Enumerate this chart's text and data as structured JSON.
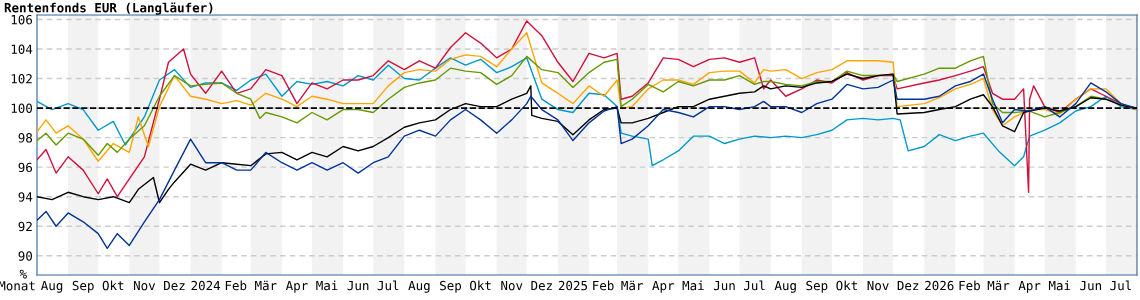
{
  "chart_data": {
    "type": "line",
    "title": "Rentenfonds EUR (Langläufer)",
    "xlabel": "Monat",
    "ylabel": "%",
    "xlim": [
      "2023-08-01",
      "2026-08-01"
    ],
    "ylim": [
      88.7,
      106.3
    ],
    "yticks": [
      90,
      92,
      94,
      96,
      98,
      100,
      102,
      104,
      106
    ],
    "xticks": [
      {
        "value": "2023-08-16",
        "label": "Aug"
      },
      {
        "value": "2023-09-16",
        "label": "Sep"
      },
      {
        "value": "2023-10-16",
        "label": "Okt"
      },
      {
        "value": "2023-11-16",
        "label": "Nov"
      },
      {
        "value": "2023-12-16",
        "label": "Dez"
      },
      {
        "value": "2024-01-16",
        "label": "2024"
      },
      {
        "value": "2024-02-15",
        "label": "Feb"
      },
      {
        "value": "2024-03-16",
        "label": "Mär"
      },
      {
        "value": "2024-04-16",
        "label": "Apr"
      },
      {
        "value": "2024-05-16",
        "label": "Mai"
      },
      {
        "value": "2024-06-16",
        "label": "Jun"
      },
      {
        "value": "2024-07-16",
        "label": "Jul"
      },
      {
        "value": "2024-08-16",
        "label": "Aug"
      },
      {
        "value": "2024-09-16",
        "label": "Sep"
      },
      {
        "value": "2024-10-16",
        "label": "Okt"
      },
      {
        "value": "2024-11-16",
        "label": "Nov"
      },
      {
        "value": "2024-12-16",
        "label": "Dez"
      },
      {
        "value": "2025-01-16",
        "label": "2025"
      },
      {
        "value": "2025-02-15",
        "label": "Feb"
      },
      {
        "value": "2025-03-16",
        "label": "Mär"
      },
      {
        "value": "2025-04-16",
        "label": "Apr"
      },
      {
        "value": "2025-05-16",
        "label": "Mai"
      },
      {
        "value": "2025-06-16",
        "label": "Jun"
      },
      {
        "value": "2025-07-16",
        "label": "Jul"
      },
      {
        "value": "2025-08-16",
        "label": "Aug"
      },
      {
        "value": "2025-09-16",
        "label": "Sep"
      },
      {
        "value": "2025-10-16",
        "label": "Okt"
      },
      {
        "value": "2025-11-16",
        "label": "Nov"
      },
      {
        "value": "2025-12-16",
        "label": "Dez"
      },
      {
        "value": "2026-01-16",
        "label": "2026"
      },
      {
        "value": "2026-02-15",
        "label": "Feb"
      },
      {
        "value": "2026-03-16",
        "label": "Mär"
      },
      {
        "value": "2026-04-16",
        "label": "Apr"
      },
      {
        "value": "2026-05-16",
        "label": "Mai"
      },
      {
        "value": "2026-06-16",
        "label": "Jun"
      },
      {
        "value": "2026-07-16",
        "label": "Jul"
      }
    ],
    "grid": "y",
    "marker": "none",
    "line_style": "solid",
    "ref_lines": [
      {
        "axis": "y",
        "value": 100,
        "label": null,
        "color": "#000000",
        "line_style": "dashed"
      }
    ],
    "bands": [
      {
        "axis": "x",
        "from": "2023-09-01",
        "to": "2023-10-01",
        "label": null,
        "color": "#f2f2f2"
      },
      {
        "axis": "x",
        "from": "2023-11-01",
        "to": "2023-12-01",
        "label": null,
        "color": "#f2f2f2"
      },
      {
        "axis": "x",
        "from": "2024-01-01",
        "to": "2024-02-01",
        "label": null,
        "color": "#f2f2f2"
      },
      {
        "axis": "x",
        "from": "2024-03-01",
        "to": "2024-04-01",
        "label": null,
        "color": "#f2f2f2"
      },
      {
        "axis": "x",
        "from": "2024-05-01",
        "to": "2024-06-01",
        "label": null,
        "color": "#f2f2f2"
      },
      {
        "axis": "x",
        "from": "2024-07-01",
        "to": "2024-08-01",
        "label": null,
        "color": "#f2f2f2"
      },
      {
        "axis": "x",
        "from": "2024-09-01",
        "to": "2024-10-01",
        "label": null,
        "color": "#f2f2f2"
      },
      {
        "axis": "x",
        "from": "2024-11-01",
        "to": "2024-12-01",
        "label": null,
        "color": "#f2f2f2"
      },
      {
        "axis": "x",
        "from": "2025-01-01",
        "to": "2025-02-01",
        "label": null,
        "color": "#f2f2f2"
      },
      {
        "axis": "x",
        "from": "2025-03-01",
        "to": "2025-04-01",
        "label": null,
        "color": "#f2f2f2"
      },
      {
        "axis": "x",
        "from": "2025-05-01",
        "to": "2025-06-01",
        "label": null,
        "color": "#f2f2f2"
      },
      {
        "axis": "x",
        "from": "2025-07-01",
        "to": "2025-08-01",
        "label": null,
        "color": "#f2f2f2"
      },
      {
        "axis": "x",
        "from": "2025-09-01",
        "to": "2025-10-01",
        "label": null,
        "color": "#f2f2f2"
      },
      {
        "axis": "x",
        "from": "2025-11-01",
        "to": "2025-12-01",
        "label": null,
        "color": "#f2f2f2"
      },
      {
        "axis": "x",
        "from": "2026-01-01",
        "to": "2026-02-01",
        "label": null,
        "color": "#f2f2f2"
      },
      {
        "axis": "x",
        "from": "2026-03-01",
        "to": "2026-04-01",
        "label": null,
        "color": "#f2f2f2"
      },
      {
        "axis": "x",
        "from": "2026-05-01",
        "to": "2026-06-01",
        "label": null,
        "color": "#f2f2f2"
      },
      {
        "axis": "x",
        "from": "2026-07-01",
        "to": "2026-08-01",
        "label": null,
        "color": "#f2f2f2"
      }
    ],
    "series": [
      {
        "color": "#0099cc",
        "x": [
          "2023-08-01",
          "2023-08-16",
          "2023-09-01",
          "2023-09-16",
          "2023-10-01",
          "2023-10-16",
          "2023-10-28",
          "2023-11-16",
          "2023-12-01",
          "2023-12-16",
          "2024-01-01",
          "2024-01-16",
          "2024-02-01",
          "2024-02-16",
          "2024-03-01",
          "2024-03-16",
          "2024-04-01",
          "2024-04-16",
          "2024-05-01",
          "2024-05-16",
          "2024-06-01",
          "2024-06-16",
          "2024-07-01",
          "2024-07-16",
          "2024-08-01",
          "2024-08-16",
          "2024-09-01",
          "2024-09-16",
          "2024-10-01",
          "2024-10-16",
          "2024-11-01",
          "2024-11-16",
          "2024-12-01",
          "2024-12-16",
          "2025-01-01",
          "2025-01-16",
          "2025-02-01",
          "2025-02-16",
          "2025-03-01",
          "2025-03-05",
          "2025-03-16",
          "2025-04-01",
          "2025-04-05",
          "2025-04-16",
          "2025-05-01",
          "2025-05-16",
          "2025-06-01",
          "2025-06-16",
          "2025-07-01",
          "2025-07-16",
          "2025-08-01",
          "2025-08-16",
          "2025-09-01",
          "2025-09-16",
          "2025-10-01",
          "2025-10-16",
          "2025-11-01",
          "2025-11-16",
          "2025-12-01",
          "2025-12-08",
          "2025-12-16",
          "2026-01-01",
          "2026-01-16",
          "2026-02-01",
          "2026-02-16",
          "2026-03-01",
          "2026-03-16",
          "2026-04-01",
          "2026-04-10",
          "2026-04-16",
          "2026-05-01",
          "2026-05-16",
          "2026-06-01",
          "2026-06-16",
          "2026-07-01",
          "2026-07-16",
          "2026-07-31"
        ],
        "values": [
          100.45,
          99.9,
          100.3,
          99.9,
          98.5,
          99.1,
          97.5,
          99.4,
          101.9,
          102.6,
          101.4,
          101.7,
          101.7,
          101.2,
          101.9,
          102.3,
          100.8,
          101.8,
          101.6,
          101.8,
          101.5,
          102.2,
          101.9,
          102.9,
          102.0,
          101.9,
          102.7,
          103.4,
          102.9,
          103.3,
          102.4,
          102.8,
          103.4,
          100.6,
          99.9,
          99.7,
          101.0,
          100.9,
          100.1,
          98.3,
          98.1,
          97.9,
          96.1,
          96.5,
          97.1,
          98.1,
          98.1,
          97.6,
          97.9,
          98.1,
          98.0,
          98.1,
          98.0,
          98.2,
          98.5,
          99.2,
          99.3,
          99.2,
          99.3,
          99.2,
          97.1,
          97.4,
          98.2,
          97.8,
          98.1,
          98.3,
          97.1,
          96.1,
          96.7,
          98.1,
          98.5,
          99.0,
          99.8,
          100.1,
          100.8,
          100.1,
          99.9
        ]
      },
      {
        "color": "#d0103a",
        "x": [
          "2023-08-01",
          "2023-08-10",
          "2023-08-20",
          "2023-09-01",
          "2023-09-16",
          "2023-10-01",
          "2023-10-10",
          "2023-10-20",
          "2023-11-01",
          "2023-11-16",
          "2023-12-01",
          "2023-12-10",
          "2023-12-25",
          "2024-01-01",
          "2024-01-16",
          "2024-02-01",
          "2024-02-16",
          "2024-03-01",
          "2024-03-16",
          "2024-04-01",
          "2024-04-16",
          "2024-05-01",
          "2024-05-16",
          "2024-06-01",
          "2024-06-16",
          "2024-07-01",
          "2024-07-16",
          "2024-08-01",
          "2024-08-16",
          "2024-09-01",
          "2024-09-16",
          "2024-10-01",
          "2024-10-16",
          "2024-11-01",
          "2024-11-16",
          "2024-12-01",
          "2024-12-16",
          "2025-01-01",
          "2025-01-16",
          "2025-02-01",
          "2025-02-16",
          "2025-03-01",
          "2025-03-05",
          "2025-03-16",
          "2025-04-01",
          "2025-04-16",
          "2025-05-01",
          "2025-05-16",
          "2025-06-01",
          "2025-06-16",
          "2025-07-01",
          "2025-07-16",
          "2025-07-25",
          "2025-08-01",
          "2025-08-16",
          "2025-09-01",
          "2025-09-16",
          "2025-10-01",
          "2025-10-16",
          "2025-11-01",
          "2025-11-16",
          "2025-12-01",
          "2025-12-05",
          "2026-01-01",
          "2026-01-16",
          "2026-02-01",
          "2026-02-16",
          "2026-03-01",
          "2026-03-10",
          "2026-03-20",
          "2026-04-01",
          "2026-04-10",
          "2026-04-15",
          "2026-04-16",
          "2026-04-20",
          "2026-05-01",
          "2026-05-16",
          "2026-06-01",
          "2026-06-16",
          "2026-07-01",
          "2026-07-16",
          "2026-07-31"
        ],
        "values": [
          96.5,
          97.2,
          95.6,
          96.7,
          95.8,
          94.2,
          95.2,
          94.0,
          95.2,
          96.7,
          100.6,
          103.1,
          104.0,
          102.3,
          101.0,
          102.5,
          101.0,
          101.3,
          102.6,
          102.2,
          100.3,
          101.7,
          101.3,
          101.9,
          101.9,
          102.2,
          103.2,
          102.6,
          103.2,
          102.7,
          104.1,
          105.1,
          104.4,
          103.4,
          104.0,
          105.9,
          104.9,
          103.1,
          101.8,
          103.7,
          103.4,
          103.7,
          100.6,
          100.8,
          101.7,
          103.4,
          103.3,
          102.8,
          103.3,
          103.4,
          103.1,
          103.4,
          101.3,
          101.9,
          100.8,
          101.3,
          101.9,
          101.7,
          102.4,
          101.9,
          102.2,
          102.2,
          101.3,
          101.7,
          101.9,
          102.2,
          102.5,
          102.8,
          101.0,
          100.6,
          100.6,
          101.3,
          94.3,
          100.6,
          101.5,
          100.1,
          99.7,
          100.6,
          101.3,
          100.8,
          100.3,
          99.9
        ]
      },
      {
        "color": "#ffa500",
        "x": [
          "2023-08-01",
          "2023-08-10",
          "2023-08-20",
          "2023-09-01",
          "2023-09-16",
          "2023-10-01",
          "2023-10-16",
          "2023-11-01",
          "2023-11-10",
          "2023-11-20",
          "2023-12-01",
          "2023-12-16",
          "2024-01-01",
          "2024-01-16",
          "2024-02-01",
          "2024-02-16",
          "2024-03-01",
          "2024-03-16",
          "2024-04-01",
          "2024-04-16",
          "2024-05-01",
          "2024-05-16",
          "2024-06-01",
          "2024-06-16",
          "2024-07-01",
          "2024-07-16",
          "2024-08-01",
          "2024-08-16",
          "2024-09-01",
          "2024-09-16",
          "2024-10-01",
          "2024-10-16",
          "2024-11-01",
          "2024-11-16",
          "2024-12-01",
          "2024-12-16",
          "2025-01-01",
          "2025-01-16",
          "2025-02-01",
          "2025-02-16",
          "2025-03-01",
          "2025-03-05",
          "2025-03-16",
          "2025-04-01",
          "2025-04-16",
          "2025-05-01",
          "2025-05-16",
          "2025-06-01",
          "2025-06-16",
          "2025-07-01",
          "2025-07-16",
          "2025-07-25",
          "2025-08-01",
          "2025-08-16",
          "2025-09-01",
          "2025-09-16",
          "2025-10-01",
          "2025-10-16",
          "2025-11-01",
          "2025-11-16",
          "2025-12-01",
          "2025-12-05",
          "2026-01-01",
          "2026-01-16",
          "2026-02-01",
          "2026-02-16",
          "2026-03-01",
          "2026-03-10",
          "2026-03-20",
          "2026-04-01",
          "2026-04-16",
          "2026-05-01",
          "2026-05-16",
          "2026-06-01",
          "2026-06-16",
          "2026-07-01",
          "2026-07-16",
          "2026-07-31"
        ],
        "values": [
          98.4,
          99.2,
          98.3,
          98.8,
          97.9,
          96.4,
          97.6,
          97.0,
          99.4,
          97.4,
          100.1,
          102.2,
          100.8,
          100.6,
          100.3,
          100.5,
          100.2,
          101.0,
          100.6,
          100.1,
          100.8,
          100.6,
          100.3,
          100.3,
          100.3,
          101.5,
          102.4,
          102.6,
          102.5,
          103.3,
          103.6,
          103.5,
          102.8,
          104.0,
          105.1,
          101.7,
          101.0,
          100.3,
          101.5,
          100.8,
          101.9,
          100.0,
          100.1,
          101.3,
          101.9,
          101.9,
          101.6,
          102.4,
          102.5,
          102.5,
          101.7,
          102.6,
          102.5,
          102.6,
          102.0,
          102.4,
          102.6,
          103.2,
          103.2,
          103.2,
          103.1,
          100.1,
          100.3,
          100.7,
          101.3,
          101.6,
          102.0,
          99.9,
          98.8,
          99.4,
          99.9,
          99.9,
          99.6,
          100.6,
          101.3,
          101.3,
          100.3,
          99.9
        ]
      },
      {
        "color": "#669900",
        "x": [
          "2023-08-01",
          "2023-08-10",
          "2023-08-20",
          "2023-09-01",
          "2023-09-16",
          "2023-10-01",
          "2023-10-10",
          "2023-10-20",
          "2023-11-01",
          "2023-11-16",
          "2023-12-01",
          "2023-12-16",
          "2024-01-01",
          "2024-01-16",
          "2024-02-01",
          "2024-02-16",
          "2024-03-01",
          "2024-03-10",
          "2024-03-16",
          "2024-04-01",
          "2024-04-16",
          "2024-05-01",
          "2024-05-16",
          "2024-06-01",
          "2024-06-16",
          "2024-07-01",
          "2024-07-16",
          "2024-08-01",
          "2024-08-16",
          "2024-09-01",
          "2024-09-16",
          "2024-10-01",
          "2024-10-16",
          "2024-11-01",
          "2024-11-16",
          "2024-12-01",
          "2024-12-16",
          "2025-01-01",
          "2025-01-16",
          "2025-02-01",
          "2025-02-16",
          "2025-03-01",
          "2025-03-05",
          "2025-03-16",
          "2025-04-01",
          "2025-04-16",
          "2025-05-01",
          "2025-05-16",
          "2025-06-01",
          "2025-06-16",
          "2025-07-01",
          "2025-07-16",
          "2025-07-25",
          "2025-08-01",
          "2025-08-16",
          "2025-09-01",
          "2025-09-16",
          "2025-10-01",
          "2025-10-16",
          "2025-11-01",
          "2025-11-16",
          "2025-12-01",
          "2025-12-05",
          "2026-01-01",
          "2026-01-16",
          "2026-02-01",
          "2026-02-16",
          "2026-03-01",
          "2026-03-10",
          "2026-03-20",
          "2026-04-01",
          "2026-04-16",
          "2026-05-01",
          "2026-05-16",
          "2026-06-01",
          "2026-06-16",
          "2026-07-01",
          "2026-07-16",
          "2026-07-31"
        ],
        "values": [
          97.8,
          98.3,
          97.5,
          98.3,
          97.9,
          96.8,
          97.6,
          97.0,
          97.9,
          98.8,
          100.8,
          102.2,
          101.5,
          101.6,
          101.7,
          101.0,
          100.6,
          99.3,
          99.7,
          99.4,
          99.0,
          99.7,
          99.2,
          99.9,
          99.9,
          99.7,
          100.6,
          101.4,
          101.7,
          101.9,
          102.7,
          102.5,
          102.4,
          101.6,
          102.2,
          103.5,
          102.6,
          102.4,
          101.4,
          102.4,
          103.1,
          103.3,
          100.1,
          100.6,
          101.6,
          101.1,
          101.8,
          101.5,
          101.9,
          101.9,
          102.2,
          101.6,
          101.8,
          101.8,
          101.6,
          101.5,
          101.8,
          101.8,
          102.5,
          102.2,
          102.2,
          102.3,
          101.8,
          102.3,
          102.7,
          102.7,
          103.2,
          103.5,
          100.3,
          99.7,
          99.7,
          99.8,
          99.4,
          99.7,
          100.1,
          100.8,
          100.6,
          100.2,
          100.0
        ]
      },
      {
        "color": "#000000",
        "x": [
          "2023-08-01",
          "2023-08-16",
          "2023-09-01",
          "2023-09-16",
          "2023-10-01",
          "2023-10-16",
          "2023-11-01",
          "2023-11-10",
          "2023-11-25",
          "2023-12-01",
          "2023-12-10",
          "2023-12-16",
          "2024-01-01",
          "2024-01-16",
          "2024-02-01",
          "2024-02-16",
          "2024-03-01",
          "2024-03-16",
          "2024-04-01",
          "2024-04-16",
          "2024-05-01",
          "2024-05-16",
          "2024-06-01",
          "2024-06-16",
          "2024-07-01",
          "2024-07-16",
          "2024-08-01",
          "2024-08-16",
          "2024-09-01",
          "2024-09-16",
          "2024-10-01",
          "2024-10-16",
          "2024-11-01",
          "2024-11-16",
          "2024-12-01",
          "2024-12-05",
          "2024-12-06",
          "2024-12-16",
          "2025-01-01",
          "2025-01-16",
          "2025-02-01",
          "2025-02-16",
          "2025-03-01",
          "2025-03-05",
          "2025-03-16",
          "2025-04-01",
          "2025-04-16",
          "2025-05-01",
          "2025-05-16",
          "2025-06-01",
          "2025-06-16",
          "2025-07-01",
          "2025-07-16",
          "2025-07-25",
          "2025-08-01",
          "2025-08-16",
          "2025-09-01",
          "2025-09-16",
          "2025-10-01",
          "2025-10-16",
          "2025-11-01",
          "2025-11-16",
          "2025-12-01",
          "2025-12-05",
          "2026-01-01",
          "2026-01-16",
          "2026-02-01",
          "2026-02-16",
          "2026-03-01",
          "2026-03-10",
          "2026-03-20",
          "2026-04-01",
          "2026-04-10",
          "2026-04-16",
          "2026-05-01",
          "2026-05-16",
          "2026-06-01",
          "2026-06-16",
          "2026-07-01",
          "2026-07-16",
          "2026-07-31"
        ],
        "values": [
          94.0,
          93.8,
          94.3,
          94.0,
          93.8,
          94.0,
          93.6,
          94.5,
          95.3,
          93.6,
          94.5,
          95.0,
          96.2,
          95.8,
          96.3,
          96.2,
          96.1,
          96.9,
          97.0,
          96.5,
          97.0,
          96.7,
          97.4,
          97.1,
          97.4,
          98.0,
          98.7,
          99.0,
          99.2,
          99.9,
          100.3,
          100.1,
          100.1,
          100.6,
          101.0,
          101.5,
          99.5,
          99.3,
          99.1,
          98.2,
          99.2,
          99.9,
          100.0,
          99.0,
          99.0,
          99.3,
          99.7,
          100.1,
          100.1,
          100.6,
          100.8,
          101.0,
          101.1,
          101.5,
          101.3,
          101.5,
          101.4,
          101.7,
          101.8,
          102.3,
          102.0,
          102.2,
          102.3,
          99.6,
          99.7,
          99.9,
          100.1,
          100.6,
          100.9,
          100.1,
          98.8,
          98.4,
          99.7,
          99.8,
          100.0,
          99.8,
          100.1,
          100.7,
          100.6,
          100.2,
          100.0
        ]
      },
      {
        "color": "#003399",
        "x": [
          "2023-08-01",
          "2023-08-10",
          "2023-08-20",
          "2023-09-01",
          "2023-09-16",
          "2023-10-01",
          "2023-10-10",
          "2023-10-20",
          "2023-11-01",
          "2023-11-16",
          "2023-12-01",
          "2023-12-16",
          "2024-01-01",
          "2024-01-16",
          "2024-02-01",
          "2024-02-16",
          "2024-03-01",
          "2024-03-16",
          "2024-04-01",
          "2024-04-16",
          "2024-05-01",
          "2024-05-16",
          "2024-06-01",
          "2024-06-16",
          "2024-07-01",
          "2024-07-16",
          "2024-08-01",
          "2024-08-16",
          "2024-09-01",
          "2024-09-16",
          "2024-10-01",
          "2024-10-16",
          "2024-11-01",
          "2024-11-16",
          "2024-12-01",
          "2024-12-05",
          "2024-12-16",
          "2025-01-01",
          "2025-01-16",
          "2025-02-01",
          "2025-02-16",
          "2025-03-01",
          "2025-03-05",
          "2025-03-16",
          "2025-04-01",
          "2025-04-16",
          "2025-05-01",
          "2025-05-16",
          "2025-06-01",
          "2025-06-16",
          "2025-07-01",
          "2025-07-16",
          "2025-07-25",
          "2025-08-01",
          "2025-08-16",
          "2025-09-01",
          "2025-09-16",
          "2025-10-01",
          "2025-10-16",
          "2025-11-01",
          "2025-11-16",
          "2025-12-01",
          "2025-12-05",
          "2026-01-01",
          "2026-01-16",
          "2026-02-01",
          "2026-02-16",
          "2026-03-01",
          "2026-03-10",
          "2026-03-20",
          "2026-04-01",
          "2026-04-16",
          "2026-05-01",
          "2026-05-16",
          "2026-06-01",
          "2026-06-16",
          "2026-07-01",
          "2026-07-16",
          "2026-07-31"
        ],
        "values": [
          92.4,
          93.0,
          92.0,
          92.9,
          92.3,
          91.5,
          90.5,
          91.5,
          90.7,
          92.3,
          93.8,
          95.8,
          97.9,
          96.3,
          96.3,
          95.8,
          95.8,
          97.0,
          96.3,
          95.8,
          96.3,
          95.8,
          96.3,
          95.6,
          96.3,
          96.7,
          98.1,
          98.5,
          98.1,
          99.2,
          99.9,
          99.2,
          98.3,
          99.2,
          100.3,
          100.8,
          99.9,
          99.2,
          97.8,
          99.0,
          99.8,
          100.1,
          97.6,
          97.9,
          98.8,
          99.9,
          99.7,
          99.4,
          100.1,
          100.1,
          99.9,
          100.1,
          100.45,
          100.1,
          100.1,
          99.7,
          100.3,
          100.6,
          101.6,
          101.3,
          101.4,
          101.9,
          100.6,
          100.6,
          100.8,
          101.5,
          101.8,
          102.3,
          100.6,
          99.0,
          99.9,
          99.8,
          100.1,
          99.4,
          100.3,
          101.7,
          101.1,
          100.3,
          100.0
        ]
      }
    ]
  }
}
